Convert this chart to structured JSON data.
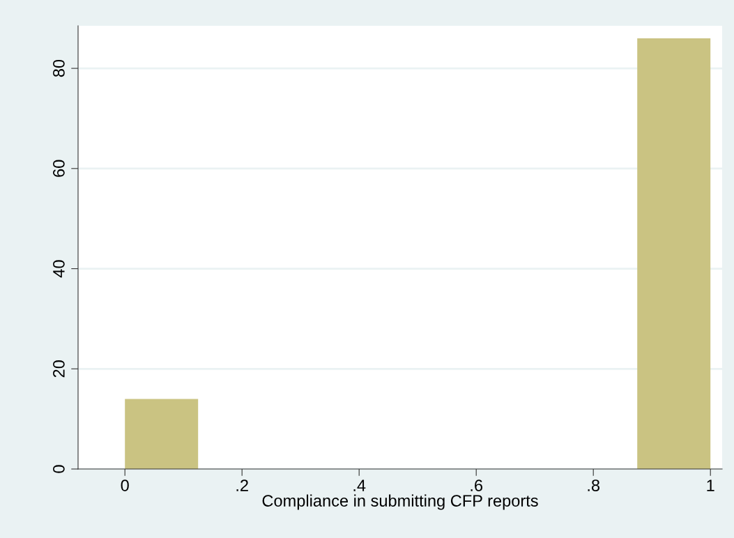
{
  "chart_data": {
    "type": "histogram",
    "xlabel": "Compliance in submitting CFP reports",
    "bins": [
      0,
      0.125,
      0.25,
      0.375,
      0.5,
      0.625,
      0.75,
      0.875,
      1
    ],
    "values": [
      14,
      0,
      0,
      0,
      0,
      0,
      0,
      86
    ],
    "color": "#cac382",
    "xlim": [
      -0.08,
      1.02
    ],
    "ylim": [
      0,
      88.5
    ],
    "xticks": [
      0,
      {
        "value": 0.2,
        "label": ".2"
      },
      {
        "value": 0.4,
        "label": ".4"
      },
      {
        "value": 0.6,
        "label": ".6"
      },
      {
        "value": 0.8,
        "label": ".8"
      },
      1
    ],
    "yticks": [
      0,
      20,
      40,
      60,
      80
    ],
    "grid": "y"
  }
}
